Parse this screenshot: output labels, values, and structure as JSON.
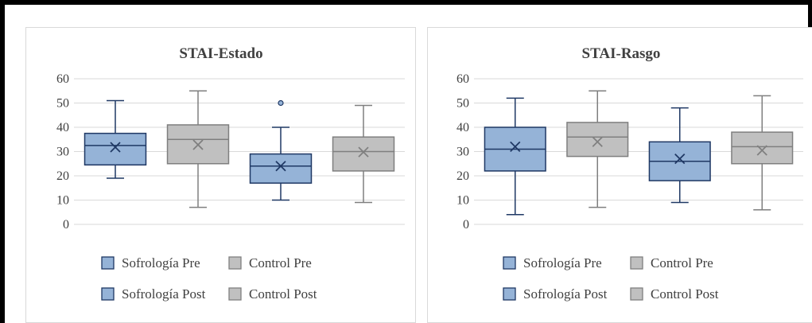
{
  "chart_data": [
    {
      "type": "box",
      "title": "STAI-Estado",
      "ylim": [
        0,
        60
      ],
      "yticks": [
        0,
        10,
        20,
        30,
        40,
        50,
        60
      ],
      "grid": true,
      "legend_position": "bottom",
      "series": [
        {
          "name": "Sofrología Pre",
          "color": "#95b3d7",
          "stroke": "#1f3864",
          "min": 19,
          "q1": 24.5,
          "median": 32.5,
          "q3": 37.5,
          "max": 51,
          "mean": 31.8,
          "outliers": []
        },
        {
          "name": "Control Pre",
          "color": "#c0c0c0",
          "stroke": "#7f7f7f",
          "min": 7,
          "q1": 25,
          "median": 35,
          "q3": 41,
          "max": 55,
          "mean": 32.8,
          "outliers": []
        },
        {
          "name": "Sofrología Post",
          "color": "#95b3d7",
          "stroke": "#1f3864",
          "min": 10,
          "q1": 17,
          "median": 24,
          "q3": 29,
          "max": 40,
          "mean": 24,
          "outliers": [
            50
          ]
        },
        {
          "name": "Control Post",
          "color": "#c0c0c0",
          "stroke": "#7f7f7f",
          "min": 9,
          "q1": 22,
          "median": 30,
          "q3": 36,
          "max": 49,
          "mean": 29.8,
          "outliers": []
        }
      ]
    },
    {
      "type": "box",
      "title": "STAI-Rasgo",
      "ylim": [
        0,
        60
      ],
      "yticks": [
        0,
        10,
        20,
        30,
        40,
        50,
        60
      ],
      "grid": true,
      "legend_position": "bottom",
      "series": [
        {
          "name": "Sofrología Pre",
          "color": "#95b3d7",
          "stroke": "#1f3864",
          "min": 4,
          "q1": 22,
          "median": 31,
          "q3": 40,
          "max": 52,
          "mean": 32,
          "outliers": []
        },
        {
          "name": "Control Pre",
          "color": "#c0c0c0",
          "stroke": "#7f7f7f",
          "min": 7,
          "q1": 28,
          "median": 36,
          "q3": 42,
          "max": 55,
          "mean": 34,
          "outliers": []
        },
        {
          "name": "Sofrología Post",
          "color": "#95b3d7",
          "stroke": "#1f3864",
          "min": 9,
          "q1": 18,
          "median": 26,
          "q3": 34,
          "max": 48,
          "mean": 27,
          "outliers": []
        },
        {
          "name": "Control Post",
          "color": "#c0c0c0",
          "stroke": "#7f7f7f",
          "min": 6,
          "q1": 25,
          "median": 32,
          "q3": 38,
          "max": 53,
          "mean": 30.5,
          "outliers": []
        }
      ]
    }
  ]
}
